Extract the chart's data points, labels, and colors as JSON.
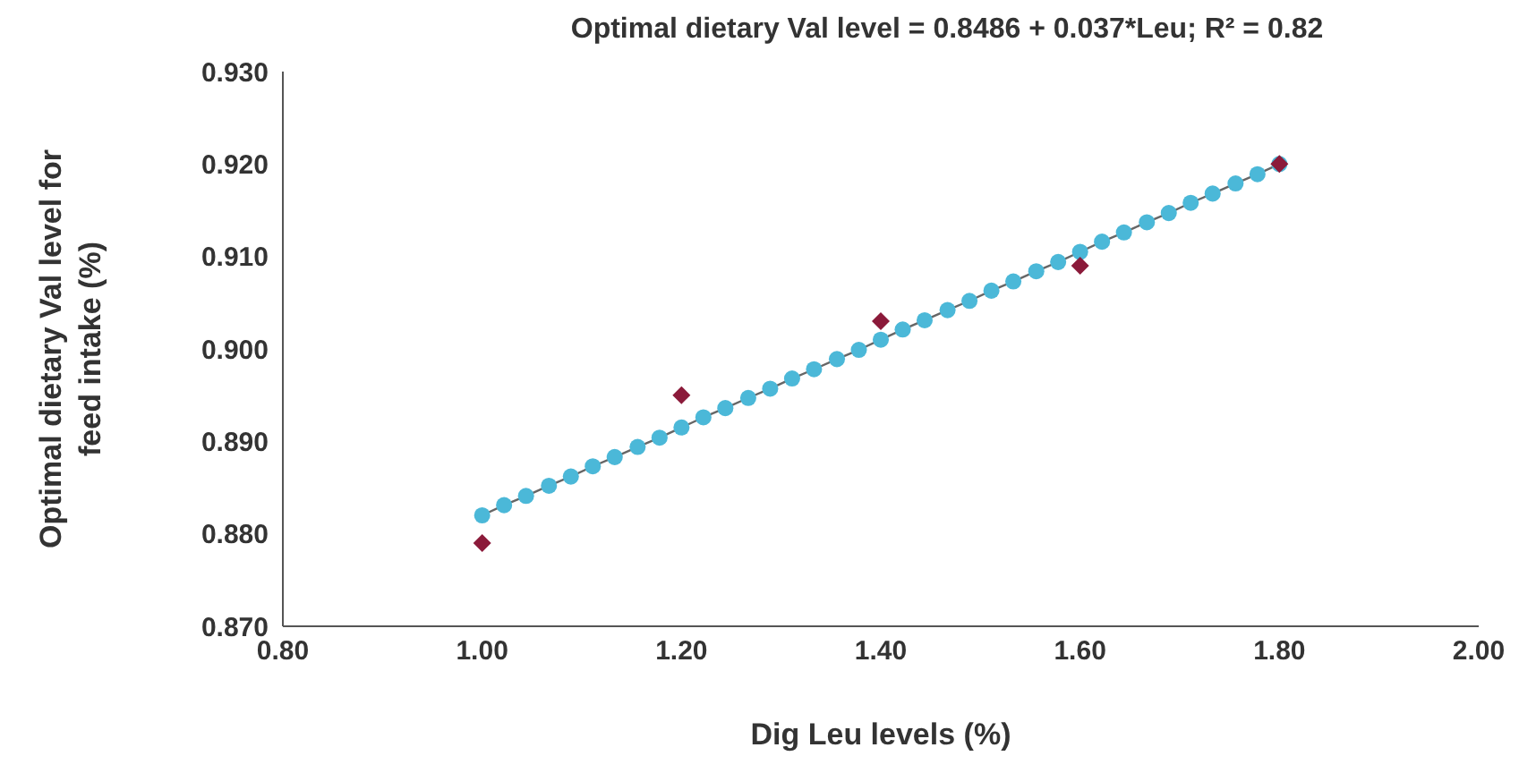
{
  "chart_data": {
    "type": "scatter",
    "title": "Optimal dietary Val level = 0.8486 + 0.037*Leu; R² = 0.82",
    "xlabel": "Dig Leu levels (%)",
    "ylabel": "Optimal dietary Val level for feed intake (%)",
    "xlim": [
      0.8,
      2.0
    ],
    "xticks": [
      {
        "value": 0.8,
        "label": "0.80"
      },
      {
        "value": 1.0,
        "label": "1.00"
      },
      {
        "value": 1.2,
        "label": "1.20"
      },
      {
        "value": 1.4,
        "label": "1.40"
      },
      {
        "value": 1.6,
        "label": "1.60"
      },
      {
        "value": 1.8,
        "label": "1.80"
      },
      {
        "value": 2.0,
        "label": "2.00"
      }
    ],
    "ylim": [
      0.87,
      0.93
    ],
    "yticks": [
      {
        "value": 0.87,
        "label": "0.870"
      },
      {
        "value": 0.88,
        "label": "0.880"
      },
      {
        "value": 0.89,
        "label": "0.890"
      },
      {
        "value": 0.9,
        "label": "0.900"
      },
      {
        "value": 0.91,
        "label": "0.910"
      },
      {
        "value": 0.92,
        "label": "0.920"
      },
      {
        "value": 0.93,
        "label": "0.930"
      }
    ],
    "grid": false,
    "legend": false,
    "series": [
      {
        "type": "line",
        "marker": "circle",
        "color": "#4bb8d8",
        "x": [
          1.0,
          1.022,
          1.044,
          1.067,
          1.089,
          1.111,
          1.133,
          1.156,
          1.178,
          1.2,
          1.222,
          1.244,
          1.267,
          1.289,
          1.311,
          1.333,
          1.356,
          1.378,
          1.4,
          1.422,
          1.444,
          1.467,
          1.489,
          1.511,
          1.533,
          1.556,
          1.578,
          1.6,
          1.622,
          1.644,
          1.667,
          1.689,
          1.711,
          1.733,
          1.756,
          1.778,
          1.8
        ],
        "values": [
          0.882,
          0.8831,
          0.8841,
          0.8852,
          0.8862,
          0.8873,
          0.8883,
          0.8894,
          0.8904,
          0.8915,
          0.8926,
          0.8936,
          0.8947,
          0.8957,
          0.8968,
          0.8978,
          0.8989,
          0.8999,
          0.901,
          0.9021,
          0.9031,
          0.9042,
          0.9052,
          0.9063,
          0.9073,
          0.9084,
          0.9094,
          0.9105,
          0.9116,
          0.9126,
          0.9137,
          0.9147,
          0.9158,
          0.9168,
          0.9179,
          0.9189,
          0.92
        ]
      },
      {
        "marker": "diamond",
        "color": "#8b1a3a",
        "x": [
          1.0,
          1.2,
          1.4,
          1.6,
          1.8
        ],
        "values": [
          0.879,
          0.895,
          0.903,
          0.909,
          0.92
        ]
      }
    ]
  }
}
